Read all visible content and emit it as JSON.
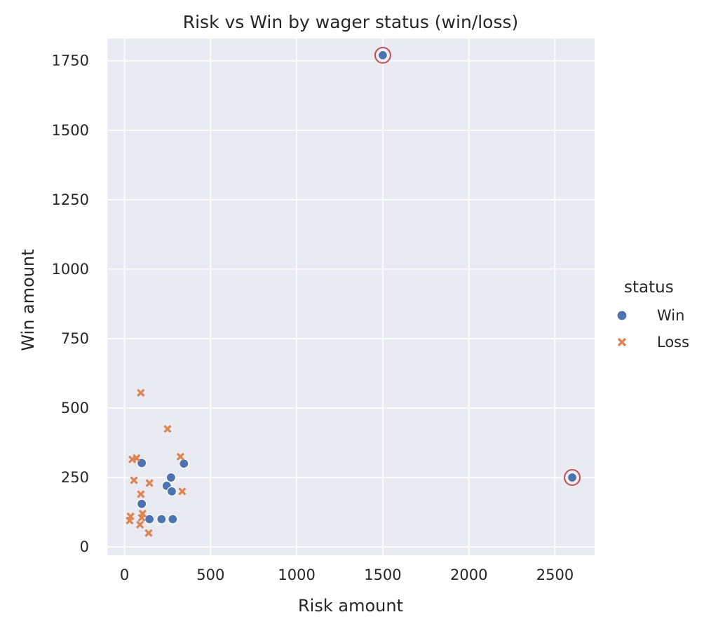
{
  "chart_data": {
    "type": "scatter",
    "title": "Risk vs Win by wager status (win/loss)",
    "xlabel": "Risk amount",
    "ylabel": "Win amount",
    "xlim": [
      -100,
      2730
    ],
    "ylim": [
      -30,
      1830
    ],
    "xticks": [
      0,
      500,
      1000,
      1500,
      2000,
      2500
    ],
    "yticks": [
      0,
      250,
      500,
      750,
      1000,
      1250,
      1500,
      1750
    ],
    "grid": true,
    "legend": {
      "title": "status",
      "placement": "right"
    },
    "colors": {
      "Win": "#4c72b0",
      "Loss": "#dd8452",
      "highlight": "#c44e52",
      "background": "#eaeaf2",
      "grid": "#ffffff"
    },
    "series": [
      {
        "name": "Win",
        "marker": "circle",
        "points": [
          [
            100,
            302
          ],
          [
            100,
            155
          ],
          [
            145,
            100
          ],
          [
            215,
            100
          ],
          [
            245,
            220
          ],
          [
            270,
            250
          ],
          [
            275,
            200
          ],
          [
            280,
            100
          ],
          [
            345,
            300
          ],
          [
            1500,
            1770
          ],
          [
            2600,
            250
          ]
        ]
      },
      {
        "name": "Loss",
        "marker": "x",
        "points": [
          [
            30,
            95
          ],
          [
            35,
            110
          ],
          [
            45,
            315
          ],
          [
            55,
            240
          ],
          [
            70,
            320
          ],
          [
            90,
            80
          ],
          [
            95,
            190
          ],
          [
            95,
            555
          ],
          [
            100,
            105
          ],
          [
            105,
            120
          ],
          [
            140,
            50
          ],
          [
            145,
            230
          ],
          [
            250,
            425
          ],
          [
            325,
            325
          ],
          [
            335,
            200
          ]
        ]
      }
    ],
    "highlighted_points": [
      [
        1500,
        1770
      ],
      [
        2600,
        250
      ]
    ]
  }
}
